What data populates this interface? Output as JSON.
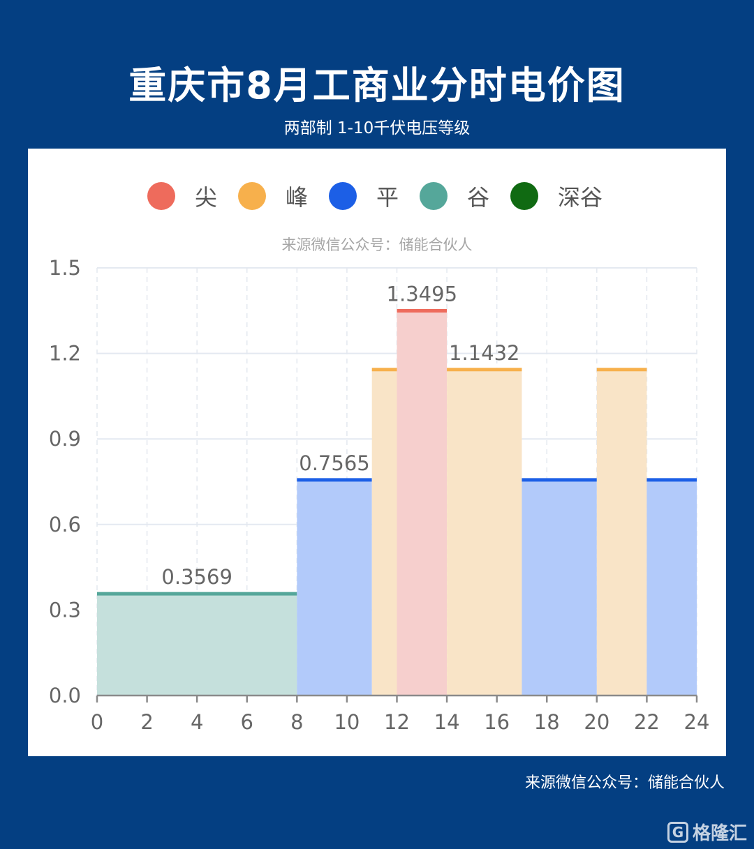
{
  "header": {
    "title": "重庆市8月工商业分时电价图",
    "subtitle": "两部制 1-10千伏电压等级"
  },
  "chart_data": {
    "type": "area",
    "step": true,
    "watermark": "来源微信公众号：储能合伙人",
    "xlim": [
      0,
      24
    ],
    "ylim": [
      0,
      1.5
    ],
    "x_ticks": [
      0,
      2,
      4,
      6,
      8,
      10,
      12,
      14,
      16,
      18,
      20,
      22,
      24
    ],
    "y_ticks": [
      0.0,
      0.3,
      0.6,
      0.9,
      1.2,
      1.5
    ],
    "y_tick_labels": [
      "0.0",
      "0.3",
      "0.6",
      "0.9",
      "1.2",
      "1.5"
    ],
    "grid": true,
    "legend_position": "top-center",
    "series": [
      {
        "key": "jian",
        "name": "尖",
        "color": "#ee6b5c",
        "fill": "#f6cfcd"
      },
      {
        "key": "feng",
        "name": "峰",
        "color": "#f7b04c",
        "fill": "#f9e4c7"
      },
      {
        "key": "ping",
        "name": "平",
        "color": "#1c5fe6",
        "fill": "#b2cafa"
      },
      {
        "key": "gu",
        "name": "谷",
        "color": "#55a79a",
        "fill": "#c5e0dc"
      },
      {
        "key": "shengu",
        "name": "深谷",
        "color": "#106a12",
        "fill": "#cde2cd"
      }
    ],
    "segments": [
      {
        "start": 0,
        "end": 8,
        "value": 0.3569,
        "series": "gu"
      },
      {
        "start": 8,
        "end": 11,
        "value": 0.7565,
        "series": "ping"
      },
      {
        "start": 11,
        "end": 12,
        "value": 1.1432,
        "series": "feng"
      },
      {
        "start": 12,
        "end": 14,
        "value": 1.3495,
        "series": "jian"
      },
      {
        "start": 14,
        "end": 17,
        "value": 1.1432,
        "series": "feng"
      },
      {
        "start": 17,
        "end": 20,
        "value": 0.7565,
        "series": "ping"
      },
      {
        "start": 20,
        "end": 22,
        "value": 1.1432,
        "series": "feng"
      },
      {
        "start": 22,
        "end": 24,
        "value": 0.7565,
        "series": "ping"
      }
    ],
    "data_labels": [
      {
        "text": "0.3569",
        "segment": 0
      },
      {
        "text": "0.7565",
        "segment": 1
      },
      {
        "text": "1.3495",
        "segment": 3
      },
      {
        "text": "1.1432",
        "segment": 4
      }
    ]
  },
  "footer": {
    "source": "来源微信公众号：储能合伙人",
    "logo_text": "格隆汇",
    "logo_mark": "G"
  }
}
